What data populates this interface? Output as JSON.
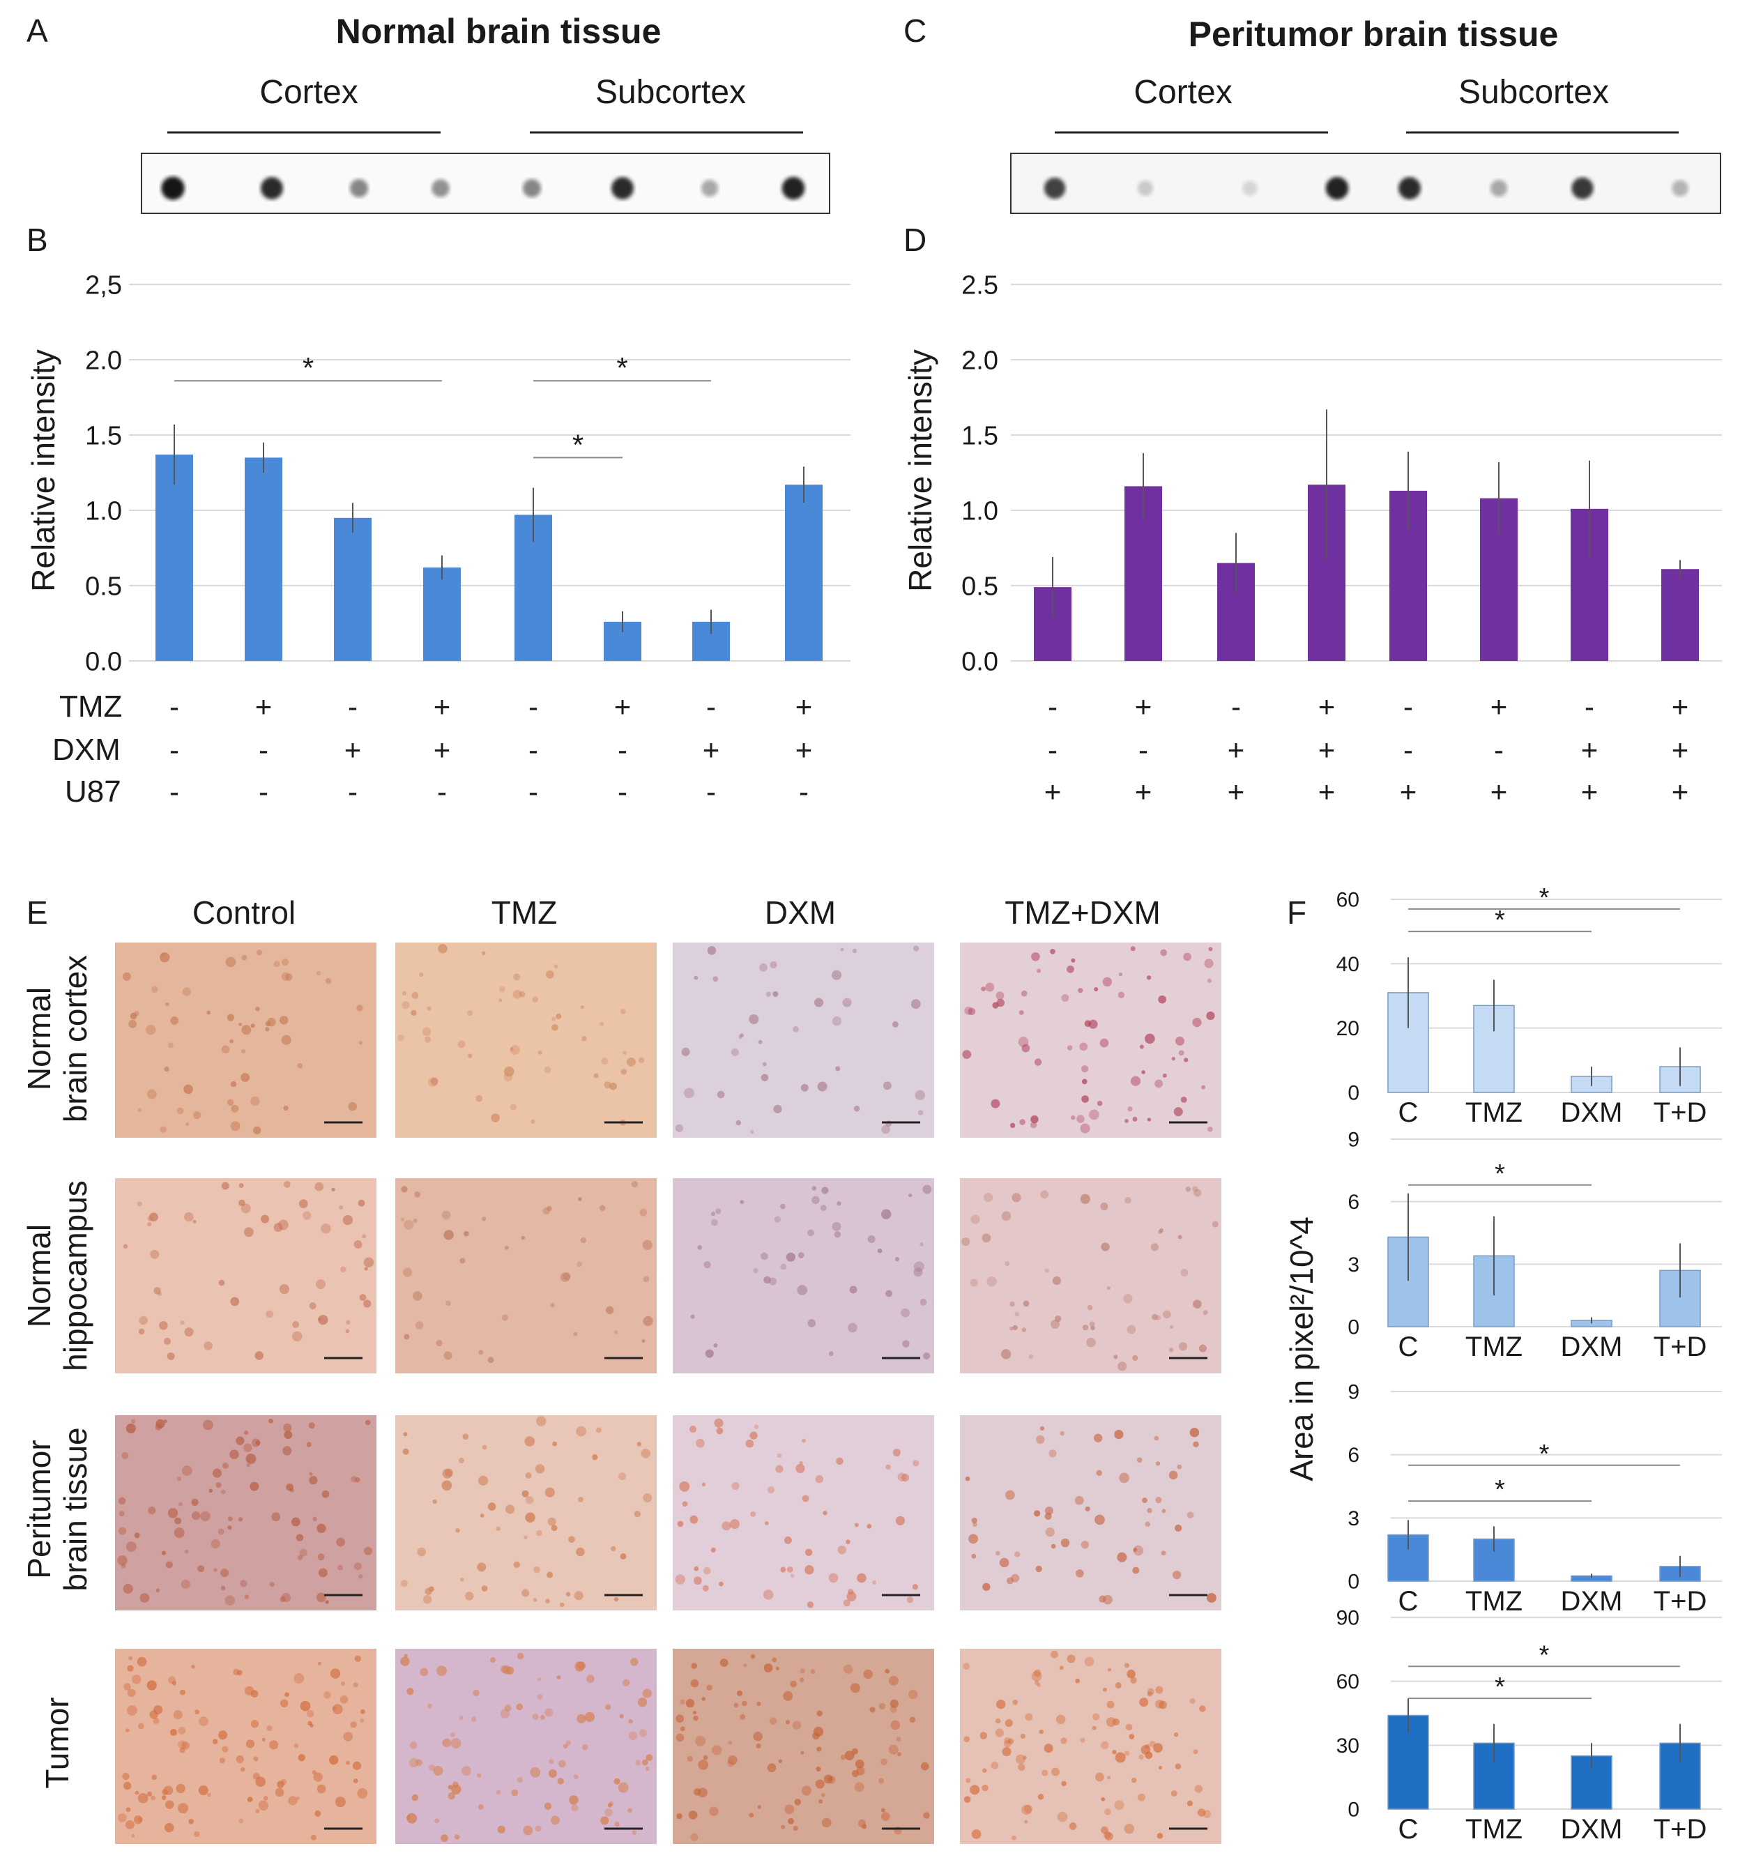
{
  "panels": {
    "A": "A",
    "B": "B",
    "C": "C",
    "D": "D",
    "E": "E",
    "F": "F"
  },
  "normal": {
    "title": "Normal brain tissue",
    "group1": "Cortex",
    "group2": "Subcortex",
    "dot_intensity": [
      0.95,
      0.85,
      0.45,
      0.4,
      0.45,
      0.85,
      0.3,
      0.9
    ]
  },
  "peritumor": {
    "title": "Peritumor brain tissue",
    "group1": "Cortex",
    "group2": "Subcortex",
    "dot_intensity": [
      0.75,
      0.15,
      0.1,
      0.9,
      0.85,
      0.3,
      0.8,
      0.25
    ]
  },
  "treatment_rows": {
    "labels": [
      "TMZ",
      "DXM",
      "U87"
    ],
    "B": [
      [
        "-",
        "+",
        "-",
        "+",
        "-",
        "+",
        "-",
        "+"
      ],
      [
        "-",
        "-",
        "+",
        "+",
        "-",
        "-",
        "+",
        "+"
      ],
      [
        "-",
        "-",
        "-",
        "-",
        "-",
        "-",
        "-",
        "-"
      ]
    ],
    "D": [
      [
        "-",
        "+",
        "-",
        "+",
        "-",
        "+",
        "-",
        "+"
      ],
      [
        "-",
        "-",
        "+",
        "+",
        "-",
        "-",
        "+",
        "+"
      ],
      [
        "+",
        "+",
        "+",
        "+",
        "+",
        "+",
        "+",
        "+"
      ]
    ]
  },
  "panel_e": {
    "columns": [
      "Control",
      "TMZ",
      "DXM",
      "TMZ+DXM"
    ],
    "rows": [
      [
        "Normal",
        "brain cortex"
      ],
      [
        "Normal",
        "hippocampus"
      ],
      [
        "Peritumor",
        "brain tissue"
      ],
      [
        "Tumor"
      ]
    ]
  },
  "panel_f_ylabel": "Area in pixel²/10^4",
  "chart_data": [
    {
      "id": "B",
      "type": "bar",
      "color": "#4a89d8",
      "ylabel": "Relative intensity",
      "yticks": [
        "0.0",
        "0.5",
        "1.0",
        "1.5",
        "2.0",
        "2,5"
      ],
      "ylim": [
        0,
        2.5
      ],
      "values": [
        1.37,
        1.35,
        0.95,
        0.62,
        0.97,
        0.26,
        0.26,
        1.17
      ],
      "errors": [
        0.2,
        0.1,
        0.1,
        0.08,
        0.18,
        0.07,
        0.08,
        0.12
      ],
      "sig": [
        {
          "from": 0,
          "to": 3,
          "y": 1.86,
          "label": "*"
        },
        {
          "from": 4,
          "to": 6,
          "y": 1.86,
          "label": "*"
        },
        {
          "from": 4,
          "to": 5,
          "y": 1.35,
          "label": "*"
        }
      ]
    },
    {
      "id": "D",
      "type": "bar",
      "color": "#7030a0",
      "ylabel": "Relative intensity",
      "yticks": [
        "0.0",
        "0.5",
        "1.0",
        "1.5",
        "2.0",
        "2.5"
      ],
      "ylim": [
        0,
        2.5
      ],
      "values": [
        0.49,
        1.16,
        0.65,
        1.17,
        1.13,
        1.08,
        1.01,
        0.61
      ],
      "errors": [
        0.2,
        0.22,
        0.2,
        0.5,
        0.26,
        0.24,
        0.32,
        0.06
      ],
      "sig": []
    },
    {
      "id": "F1",
      "type": "bar",
      "color": "#c5dbf3",
      "categories": [
        "C",
        "TMZ",
        "DXM",
        "T+D"
      ],
      "yticks": [
        "0",
        "20",
        "40",
        "60"
      ],
      "ylim": [
        0,
        60
      ],
      "values": [
        31,
        27,
        5,
        8
      ],
      "errors": [
        11,
        8,
        3,
        6
      ],
      "sig": [
        {
          "from": 0,
          "to": 2,
          "y": 50,
          "label": "*"
        },
        {
          "from": 0,
          "to": 3,
          "y": 57,
          "label": "*"
        }
      ]
    },
    {
      "id": "F2",
      "type": "bar",
      "color": "#9dc3ea",
      "categories": [
        "C",
        "TMZ",
        "DXM",
        "T+D"
      ],
      "yticks": [
        "0",
        "3",
        "6",
        "9"
      ],
      "ylim": [
        0,
        9
      ],
      "values": [
        4.3,
        3.4,
        0.3,
        2.7
      ],
      "errors": [
        2.1,
        1.9,
        0.15,
        1.3
      ],
      "sig": [
        {
          "from": 0,
          "to": 2,
          "y": 6.8,
          "label": "*"
        }
      ]
    },
    {
      "id": "F3",
      "type": "bar",
      "color": "#4a89d8",
      "categories": [
        "C",
        "TMZ",
        "DXM",
        "T+D"
      ],
      "yticks": [
        "0",
        "3",
        "6",
        "9"
      ],
      "ylim": [
        0,
        9
      ],
      "values": [
        2.2,
        2.0,
        0.25,
        0.7
      ],
      "errors": [
        0.7,
        0.6,
        0.1,
        0.5
      ],
      "sig": [
        {
          "from": 0,
          "to": 2,
          "y": 3.8,
          "label": "*"
        },
        {
          "from": 0,
          "to": 3,
          "y": 5.5,
          "label": "*"
        }
      ]
    },
    {
      "id": "F4",
      "type": "bar",
      "color": "#1f6fc4",
      "categories": [
        "C",
        "TMZ",
        "DXM",
        "T+D"
      ],
      "yticks": [
        "0",
        "30",
        "60",
        "90"
      ],
      "ylim": [
        0,
        90
      ],
      "values": [
        44,
        31,
        25,
        31
      ],
      "errors": [
        8,
        9,
        6,
        9
      ],
      "sig": [
        {
          "from": 0,
          "to": 2,
          "y": 52,
          "label": "*"
        },
        {
          "from": 0,
          "to": 3,
          "y": 67,
          "label": "*"
        }
      ]
    }
  ],
  "colors": {
    "brown": "#c0704a",
    "tissue_bg": "#e9c3aa",
    "purple_bg": "#d8c6d8"
  }
}
